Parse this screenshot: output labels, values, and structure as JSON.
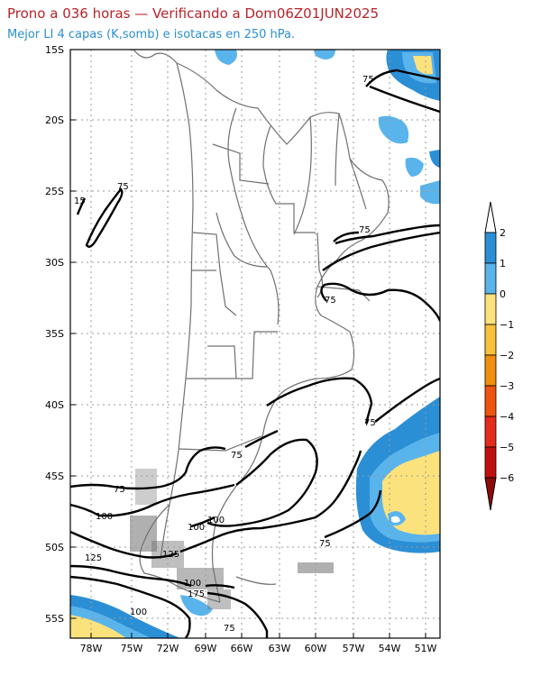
{
  "header": {
    "title": "Prono a 036 horas — Verificando a Dom06Z01JUN2025",
    "subtitle": "Mejor LI 4 capas (K,somb) e isotacas en 250 hPa."
  },
  "map": {
    "lat_labels": [
      "15S",
      "20S",
      "25S",
      "30S",
      "35S",
      "40S",
      "45S",
      "50S",
      "55S"
    ],
    "lon_labels": [
      "78W",
      "75W",
      "72W",
      "69W",
      "66W",
      "63W",
      "60W",
      "57W",
      "54W",
      "51W"
    ],
    "isotach_labels": [
      "75",
      "15",
      "75",
      "75",
      "75",
      "75",
      "75",
      "75",
      "75",
      "100",
      "100",
      "100",
      "125",
      "125",
      "100",
      "175",
      "100",
      "75"
    ]
  },
  "legend": {
    "ticks": [
      "2",
      "1",
      "0",
      "−1",
      "−2",
      "−3",
      "−4",
      "−5",
      "−6"
    ],
    "colors": [
      "#2b8fd6",
      "#5ab4ec",
      "#fce27c",
      "#f7c13a",
      "#f0900e",
      "#ee5410",
      "#e42a1c",
      "#bf0f0f",
      "#8e0a0a"
    ]
  },
  "colors": {
    "land_border": "#707070",
    "isotach": "#000000",
    "grid": "#9a9a9a"
  }
}
